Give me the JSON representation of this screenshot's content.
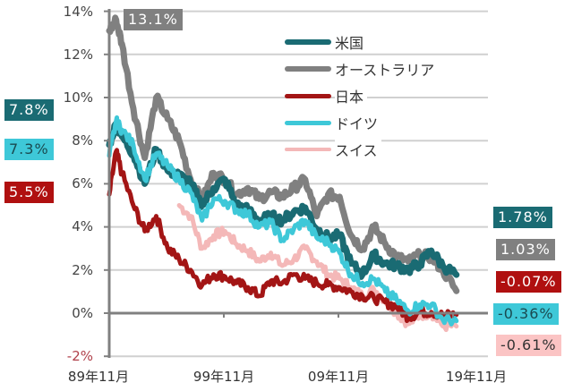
{
  "chart_data": {
    "type": "line",
    "title": "",
    "xlabel": "",
    "ylabel": "",
    "ylim": [
      -2,
      14
    ],
    "yticks": [
      "14%",
      "12%",
      "10%",
      "8%",
      "6%",
      "4%",
      "2%",
      "0%",
      "-2%"
    ],
    "xticks": [
      "89年11月",
      "99年11月",
      "09年11月",
      "19年11月"
    ],
    "grid": true,
    "legend_position": "upper right inside",
    "x": [
      1989.9,
      1990.5,
      1991,
      1992,
      1993,
      1994,
      1995,
      1996,
      1997,
      1998,
      1999,
      2000,
      2001,
      2002,
      2003,
      2004,
      2005,
      2006,
      2007,
      2008,
      2009,
      2010,
      2011,
      2012,
      2013,
      2014,
      2015,
      2016,
      2017,
      2018,
      2019,
      2020.2
    ],
    "series": [
      {
        "name": "米国",
        "color": "#1a6b73",
        "start_label": "7.8%",
        "end_label": "1.78%",
        "values": [
          7.8,
          8.8,
          8.2,
          7.4,
          6.0,
          7.6,
          6.6,
          6.4,
          6.0,
          5.0,
          5.8,
          6.2,
          5.0,
          4.8,
          4.3,
          4.5,
          4.3,
          4.7,
          4.9,
          3.9,
          3.5,
          3.6,
          2.3,
          1.8,
          2.7,
          2.3,
          2.2,
          2.0,
          2.3,
          2.9,
          2.2,
          1.78
        ]
      },
      {
        "name": "オーストラリア",
        "color": "#808080",
        "start_label": "",
        "end_label": "1.03%",
        "peak_label": "13.1%",
        "values": [
          13.1,
          13.6,
          12.5,
          9.5,
          7.2,
          10.0,
          9.0,
          8.0,
          6.2,
          5.2,
          6.5,
          6.2,
          5.5,
          5.8,
          5.3,
          5.6,
          5.4,
          5.8,
          6.2,
          4.5,
          5.5,
          5.4,
          3.6,
          3.0,
          4.0,
          3.2,
          2.6,
          2.4,
          2.7,
          2.6,
          2.0,
          1.03
        ]
      },
      {
        "name": "日本",
        "color": "#a31515",
        "start_label": "5.5%",
        "end_label": "-0.07%",
        "values": [
          5.5,
          7.5,
          6.5,
          5.0,
          3.8,
          4.5,
          3.0,
          2.5,
          2.0,
          1.3,
          1.8,
          1.7,
          1.4,
          1.2,
          0.8,
          1.5,
          1.4,
          1.8,
          1.6,
          1.4,
          1.3,
          1.2,
          1.0,
          0.8,
          0.7,
          0.5,
          0.3,
          -0.2,
          0.05,
          0.05,
          -0.1,
          -0.07
        ]
      },
      {
        "name": "ドイツ",
        "color": "#3ec8d8",
        "start_label": "7.3%",
        "end_label": "-0.36%",
        "values": [
          7.3,
          8.9,
          8.5,
          7.8,
          6.2,
          7.4,
          6.8,
          6.2,
          5.6,
          4.3,
          5.3,
          5.2,
          4.8,
          4.6,
          4.0,
          4.2,
          3.4,
          3.9,
          4.3,
          3.5,
          3.3,
          2.8,
          1.8,
          1.4,
          1.6,
          1.0,
          0.6,
          0.1,
          0.4,
          0.4,
          -0.3,
          -0.36
        ]
      },
      {
        "name": "スイス",
        "color": "#f4b8b8",
        "start_label": "",
        "end_label": "-0.61%",
        "values": [
          null,
          null,
          null,
          null,
          null,
          null,
          null,
          5.0,
          4.5,
          3.0,
          3.6,
          3.8,
          3.2,
          2.9,
          2.4,
          2.8,
          2.2,
          2.5,
          3.0,
          2.4,
          1.8,
          1.6,
          1.2,
          0.8,
          1.1,
          0.6,
          0.0,
          -0.5,
          -0.1,
          0.0,
          -0.6,
          -0.61
        ]
      }
    ]
  },
  "badges": {
    "peak": {
      "text": "13.1%"
    },
    "left": [
      {
        "text": "7.8%",
        "series": "米国"
      },
      {
        "text": "7.3%",
        "series": "ドイツ"
      },
      {
        "text": "5.5%",
        "series": "日本"
      }
    ],
    "right": [
      {
        "text": "1.78%",
        "series": "米国"
      },
      {
        "text": "1.03%",
        "series": "オーストラリア"
      },
      {
        "text": "-0.07%",
        "series": "日本"
      },
      {
        "text": "-0.36%",
        "series": "ドイツ"
      },
      {
        "text": "-0.61%",
        "series": "スイス"
      }
    ]
  },
  "legend": {
    "items": [
      {
        "label": "米国",
        "color": "#1a6b73"
      },
      {
        "label": "オーストラリア",
        "color": "#808080"
      },
      {
        "label": "日本",
        "color": "#a31515"
      },
      {
        "label": "ドイツ",
        "color": "#3ec8d8"
      },
      {
        "label": "スイス",
        "color": "#f4b8b8"
      }
    ]
  },
  "colors": {
    "negative_tick": "#b0404a",
    "axis": "#808080",
    "grid": "#d0d0d0"
  }
}
